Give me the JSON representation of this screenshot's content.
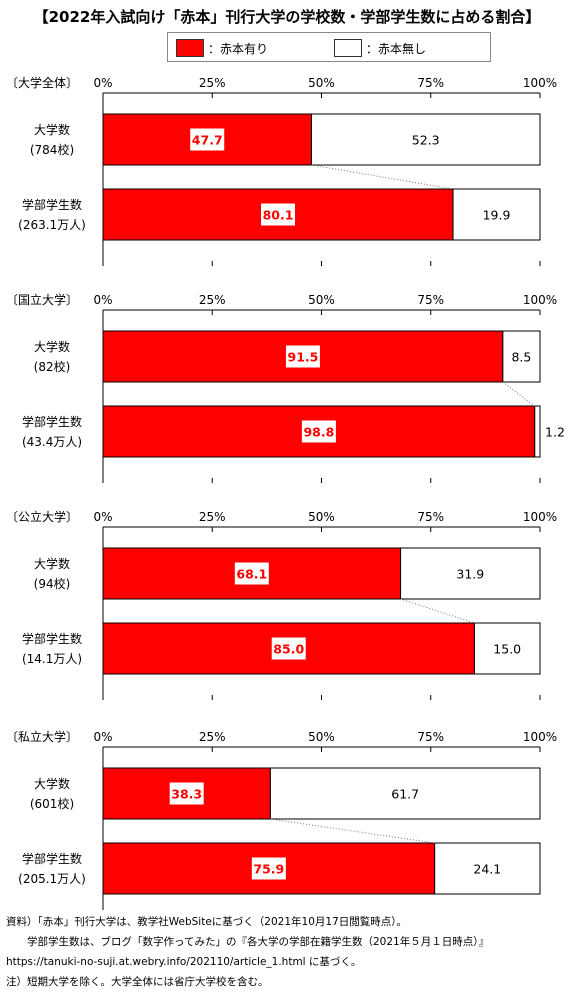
{
  "title": "【2022年入試向け「赤本」刊行大学の学校数・学部学生数に占める割合】",
  "legend": [
    {
      "label": "：赤本有り",
      "color": "#ff0000"
    },
    {
      "label": "：赤本無し",
      "color": "#ffffff"
    }
  ],
  "chart_data": {
    "type": "bar",
    "orientation": "horizontal",
    "stacked": true,
    "xlim": [
      0,
      100
    ],
    "x_ticks": [
      "0%",
      "25%",
      "50%",
      "75%",
      "100%"
    ],
    "series": [
      {
        "name": "赤本有り",
        "color": "#ff0000"
      },
      {
        "name": "赤本無し",
        "color": "#ffffff"
      }
    ],
    "panels": [
      {
        "label": "〔大学全体〕",
        "bars": [
          {
            "name": "大学数",
            "sub": "(784校)",
            "with": 47.7,
            "without": 52.3
          },
          {
            "name": "学部学生数",
            "sub": "(263.1万人)",
            "with": 80.1,
            "without": 19.9
          }
        ]
      },
      {
        "label": "〔国立大学〕",
        "bars": [
          {
            "name": "大学数",
            "sub": "(82校)",
            "with": 91.5,
            "without": 8.5
          },
          {
            "name": "学部学生数",
            "sub": "(43.4万人)",
            "with": 98.8,
            "without": 1.2
          }
        ]
      },
      {
        "label": "〔公立大学〕",
        "bars": [
          {
            "name": "大学数",
            "sub": "(94校)",
            "with": 68.1,
            "without": 31.9
          },
          {
            "name": "学部学生数",
            "sub": "(14.1万人)",
            "with": 85.0,
            "without": 15.0
          }
        ]
      },
      {
        "label": "〔私立大学〕",
        "bars": [
          {
            "name": "大学数",
            "sub": "(601校)",
            "with": 38.3,
            "without": 61.7
          },
          {
            "name": "学部学生数",
            "sub": "(205.1万人)",
            "with": 75.9,
            "without": 24.1
          }
        ]
      }
    ]
  },
  "notes": [
    "資料）「赤本」刊行大学は、教学社WebSiteに基づく（2021年10月17日閲覧時点）。",
    "　　学部学生数は、ブログ「数字作ってみた」の『各大学の学部在籍学生数（2021年５月１日時点）』",
    "https://tanuki-no-suji.at.webry.info/202110/article_1.html に基づく。",
    "注）短期大学を除く。大学全体には省庁大学校を含む。"
  ]
}
